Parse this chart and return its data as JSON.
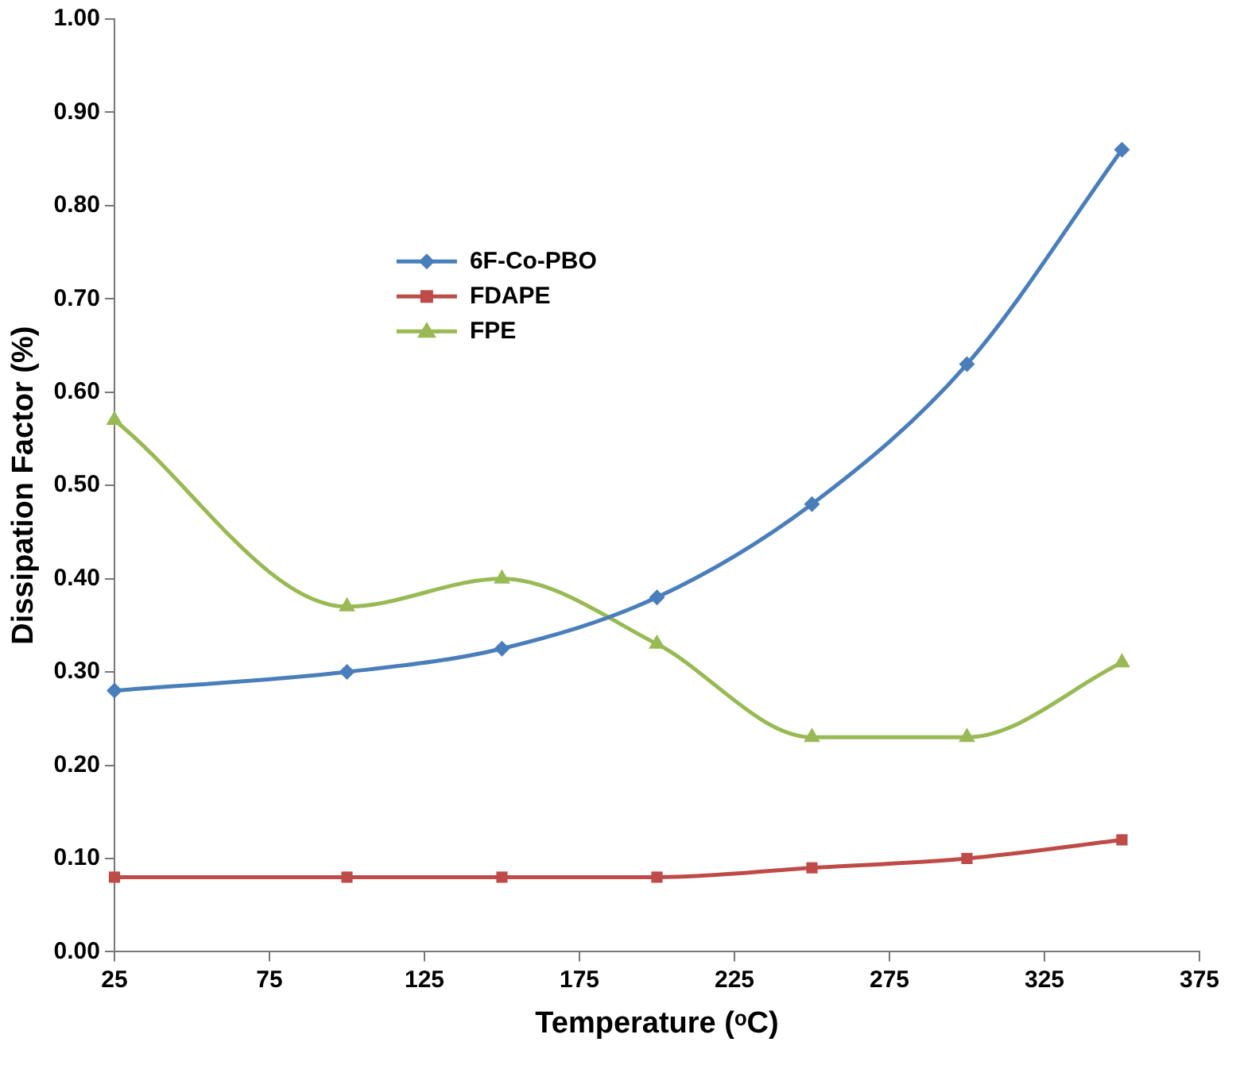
{
  "chart_data": {
    "type": "line",
    "xlabel": "Temperature (ᵒC)",
    "ylabel": "Dissipation Factor (%)",
    "x": [
      25,
      100,
      150,
      200,
      250,
      300,
      350
    ],
    "series": [
      {
        "name": "6F-Co-PBO",
        "color": "#4a7ebb",
        "marker": "diamond",
        "values": [
          0.28,
          0.3,
          0.325,
          0.38,
          0.48,
          0.63,
          0.86
        ]
      },
      {
        "name": "FDAPE",
        "color": "#be4b48",
        "marker": "square",
        "values": [
          0.08,
          0.08,
          0.08,
          0.08,
          0.09,
          0.1,
          0.12
        ]
      },
      {
        "name": "FPE",
        "color": "#98b954",
        "marker": "triangle",
        "values": [
          0.57,
          0.37,
          0.4,
          0.33,
          0.23,
          0.23,
          0.31
        ]
      }
    ],
    "xlim": [
      25,
      375
    ],
    "xticks": [
      25,
      75,
      125,
      175,
      225,
      275,
      325,
      375
    ],
    "ylim": [
      0,
      1
    ],
    "yticks": [
      {
        "value": 0,
        "label": "0.00"
      },
      {
        "value": 0.1,
        "label": "0.10"
      },
      {
        "value": 0.2,
        "label": "0.20"
      },
      {
        "value": 0.3,
        "label": "0.30"
      },
      {
        "value": 0.4,
        "label": "0.40"
      },
      {
        "value": 0.5,
        "label": "0.50"
      },
      {
        "value": 0.6,
        "label": "0.60"
      },
      {
        "value": 0.7,
        "label": "0.70"
      },
      {
        "value": 0.8,
        "label": "0.80"
      },
      {
        "value": 0.9,
        "label": "0.90"
      },
      {
        "value": 1,
        "label": "1.00"
      }
    ],
    "grid": false,
    "legend": "top left",
    "line_style": "solid"
  }
}
